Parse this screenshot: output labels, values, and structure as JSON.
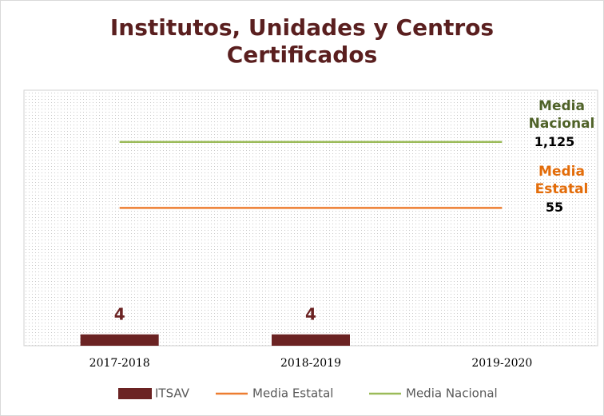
{
  "chart_data": {
    "type": "bar",
    "title": "Institutos, Unidades y Centros Certificados",
    "categories": [
      "2017-2018",
      "2018-2019",
      "2019-2020"
    ],
    "ylim": [
      0,
      90
    ],
    "y2lim": [
      0.1,
      12000
    ],
    "y2log": true,
    "series": [
      {
        "name": "ITSAV",
        "type": "bar",
        "color": "#6b2323",
        "values": [
          4,
          4,
          null
        ]
      },
      {
        "name": "Media Estatal",
        "type": "line",
        "axis": "y2",
        "color": "#ed7d31",
        "label_color": "#e36c09",
        "values": [
          55,
          55,
          55
        ],
        "value_labels": [
          null,
          null,
          "55"
        ]
      },
      {
        "name": "Media Nacional",
        "type": "line",
        "axis": "y2",
        "color": "#9bbb59",
        "label_color": "#4f6228",
        "values": [
          1125,
          1125,
          1125
        ],
        "value_labels": [
          null,
          null,
          "1,125"
        ]
      }
    ]
  }
}
